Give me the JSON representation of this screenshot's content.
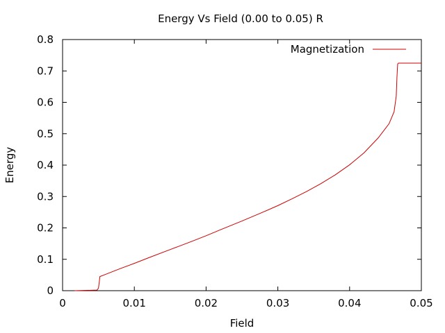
{
  "chart_data": {
    "type": "line",
    "title": "Energy Vs Field (0.00 to 0.05) R",
    "xlabel": "Field",
    "ylabel": "Energy",
    "xlim": [
      0,
      0.05
    ],
    "ylim": [
      0,
      0.8
    ],
    "xticks": [
      "0",
      "0.01",
      "0.02",
      "0.03",
      "0.04",
      "0.05"
    ],
    "yticks": [
      "0",
      "0.1",
      "0.2",
      "0.3",
      "0.4",
      "0.5",
      "0.6",
      "0.7",
      "0.8"
    ],
    "grid": false,
    "legend_position": "top-right",
    "series": [
      {
        "name": "Magnetization",
        "color": "#cc0000",
        "x": [
          0.0017,
          0.0048,
          0.005,
          0.0051,
          0.0052,
          0.006,
          0.008,
          0.01,
          0.012,
          0.015,
          0.018,
          0.02,
          0.022,
          0.025,
          0.028,
          0.03,
          0.032,
          0.034,
          0.036,
          0.038,
          0.04,
          0.042,
          0.044,
          0.0455,
          0.0462,
          0.0465,
          0.0466,
          0.0467,
          0.0468,
          0.047,
          0.048,
          0.05
        ],
        "y": [
          0.0,
          0.002,
          0.008,
          0.025,
          0.045,
          0.052,
          0.07,
          0.087,
          0.105,
          0.131,
          0.157,
          0.175,
          0.194,
          0.222,
          0.251,
          0.271,
          0.293,
          0.316,
          0.341,
          0.369,
          0.401,
          0.439,
          0.487,
          0.532,
          0.57,
          0.62,
          0.68,
          0.722,
          0.725,
          0.725,
          0.725,
          0.725
        ]
      }
    ]
  }
}
